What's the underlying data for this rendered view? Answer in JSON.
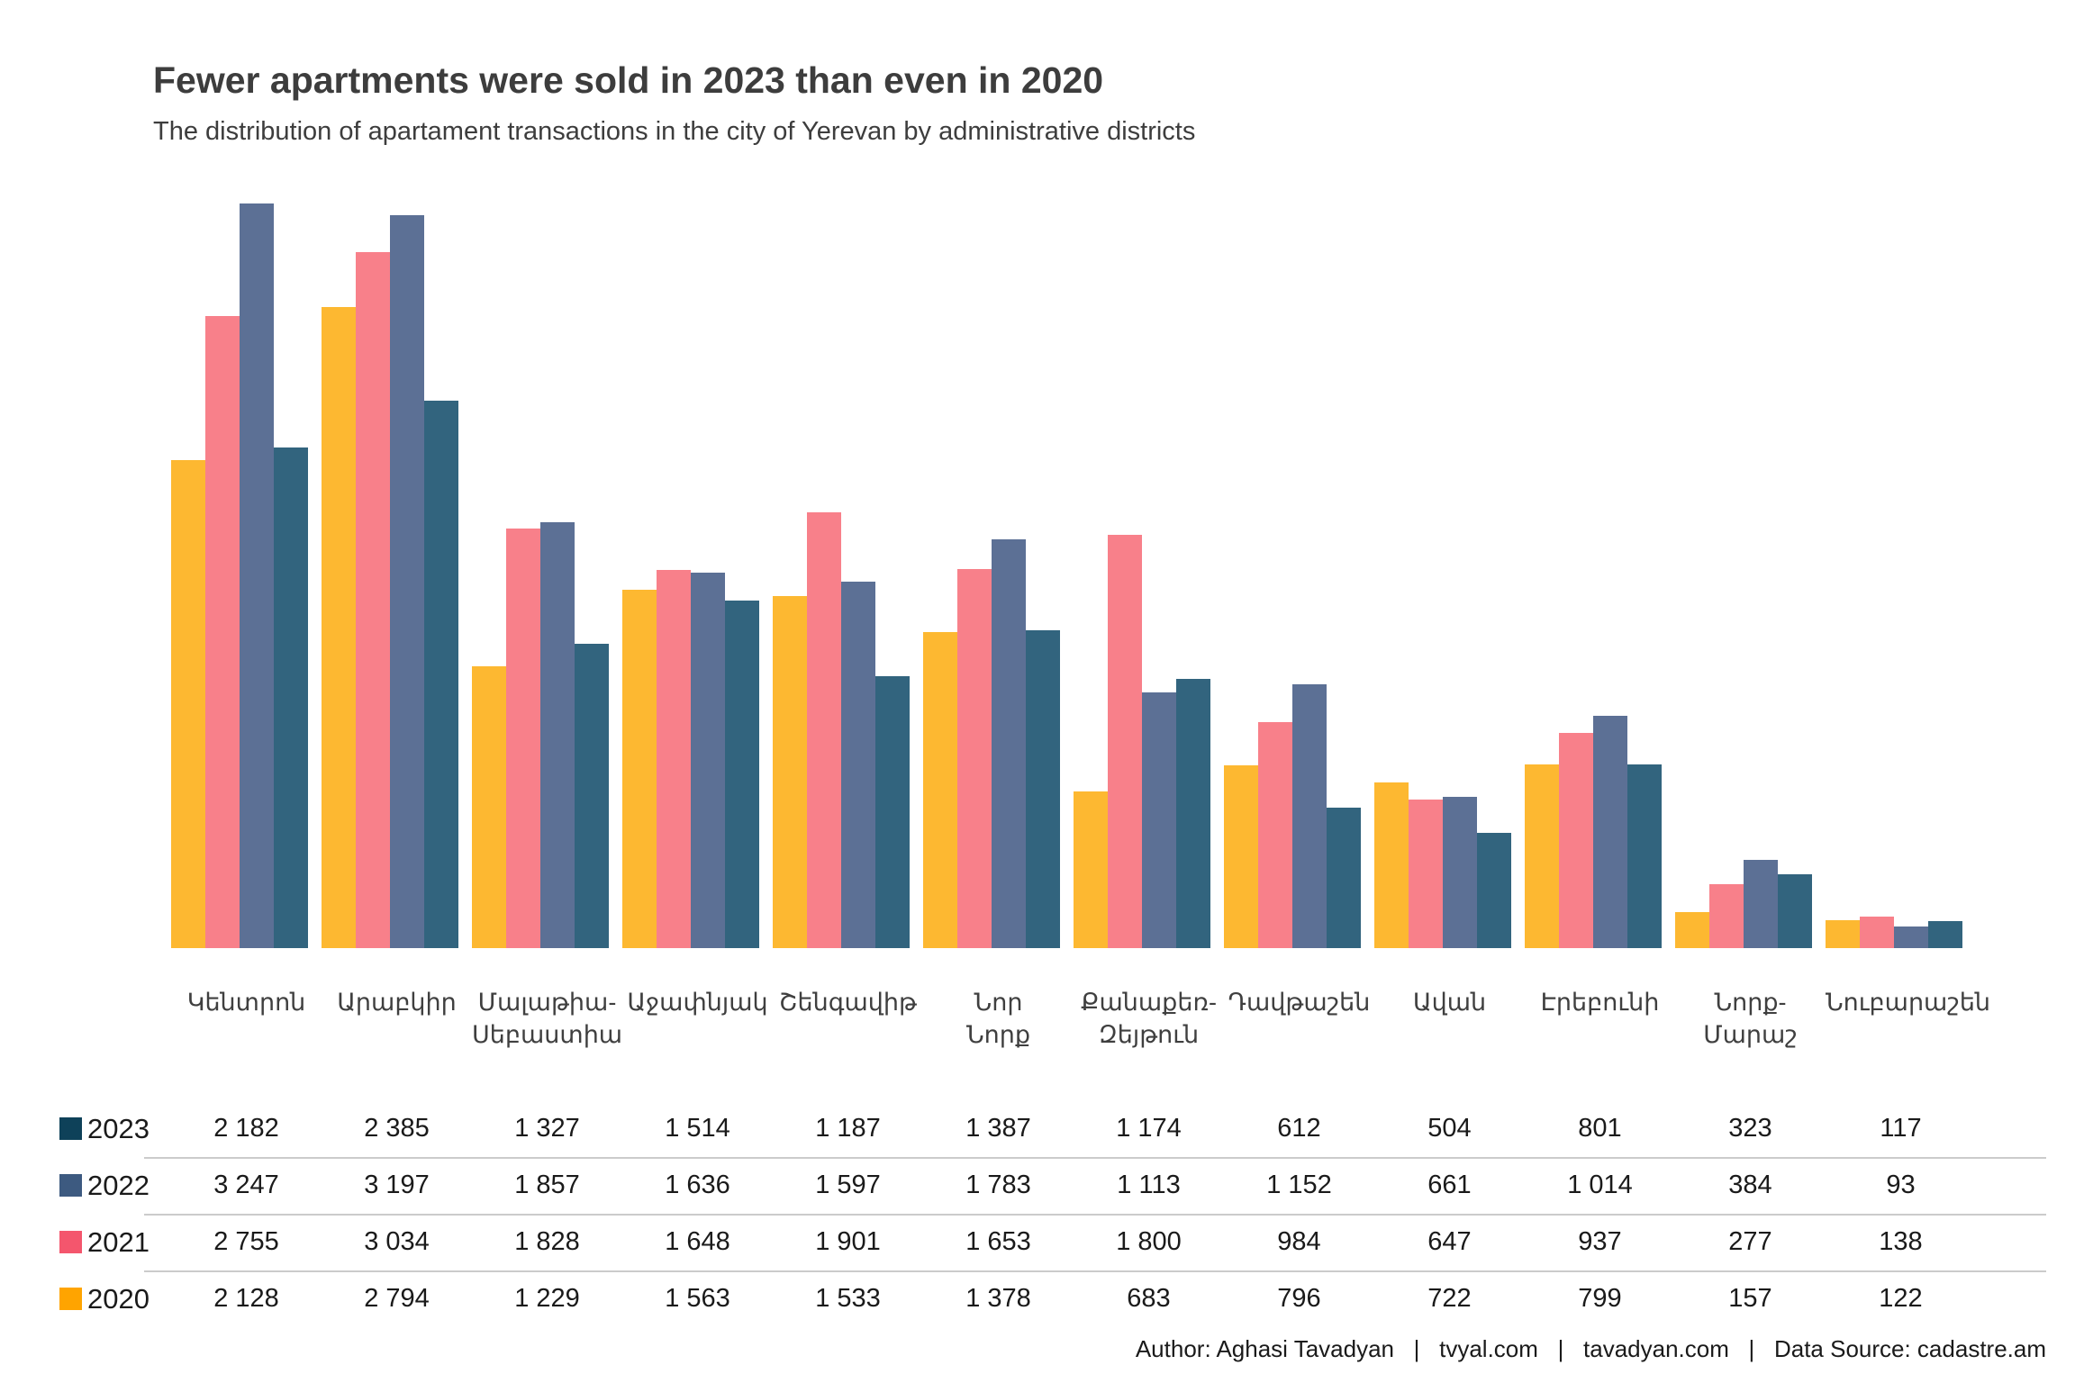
{
  "title": "Fewer apartments were sold in 2023 than even in 2020",
  "subtitle": "The distribution of apartament transactions in the city of Yerevan by administrative districts",
  "footer": {
    "text": "Author: Aghasi Tavadyan   |   tvyal.com   |   tavadyan.com   |   Data Source: cadastre.am"
  },
  "chart_data": {
    "type": "bar",
    "title": "Fewer apartments were sold in 2023 than even in 2020",
    "subtitle": "The distribution of apartament transactions in the city of Yerevan by administrative districts",
    "categories": [
      "Կենտրոն",
      "Արաբկիր",
      "Մալաթիա-\nՍեբաստիա",
      "Աջափնյակ",
      "Շենգավիթ",
      "Նոր\nՆորք",
      "Քանաքեռ-\nԶեյթուն",
      "Դավթաշեն",
      "Ավան",
      "Էրեբունի",
      "Նորք-\nՄարաշ",
      "Նուբարաշեն"
    ],
    "series": [
      {
        "name": "2020",
        "bar_color": "#FDB831",
        "legend_color": "#FFA400",
        "values": [
          2128,
          2794,
          1229,
          1563,
          1533,
          1378,
          683,
          796,
          722,
          799,
          157,
          122
        ]
      },
      {
        "name": "2021",
        "bar_color": "#F8808A",
        "legend_color": "#F4566D",
        "values": [
          2755,
          3034,
          1828,
          1648,
          1901,
          1653,
          1800,
          984,
          647,
          937,
          277,
          138
        ]
      },
      {
        "name": "2022",
        "bar_color": "#5C7095",
        "legend_color": "#3D5A80",
        "values": [
          3247,
          3197,
          1857,
          1636,
          1597,
          1783,
          1113,
          1152,
          661,
          1014,
          384,
          93
        ]
      },
      {
        "name": "2023",
        "bar_color": "#32647E",
        "legend_color": "#0E4159",
        "values": [
          2182,
          2385,
          1327,
          1514,
          1187,
          1387,
          1174,
          612,
          504,
          801,
          323,
          117
        ]
      }
    ],
    "bar_order": [
      "2020",
      "2021",
      "2022",
      "2023"
    ],
    "table_row_order": [
      "2023",
      "2022",
      "2021",
      "2020"
    ],
    "xlabel": "",
    "ylabel": "",
    "ylim": [
      0,
      3250
    ],
    "grid": false,
    "axis_lines": false,
    "legend_position": "left-of-table-rows",
    "value_format": "space-thousands"
  }
}
